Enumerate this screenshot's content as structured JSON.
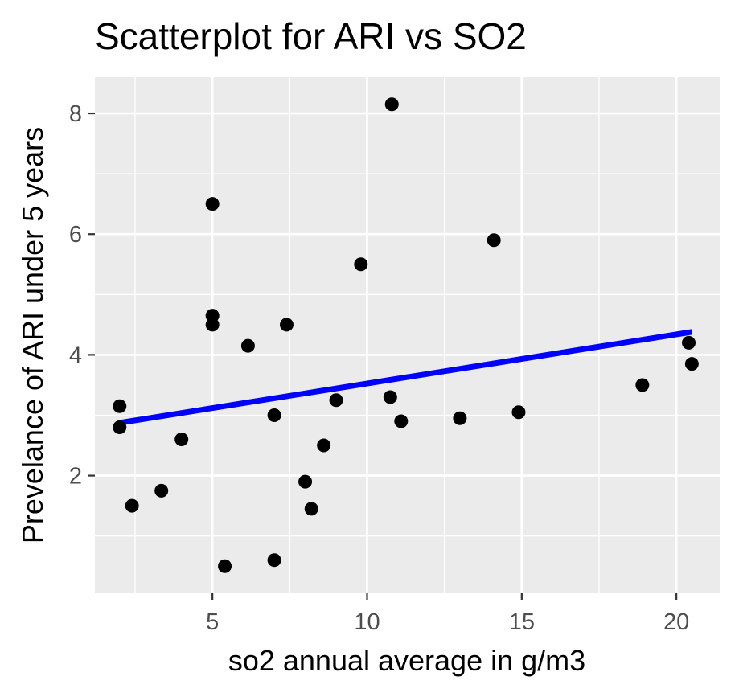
{
  "chart_data": {
    "type": "scatter",
    "title": "Scatterplot for ARI vs SO2",
    "xlabel": "so2 annual average in g/m3",
    "ylabel": "Prevelance of ARI under 5 years",
    "xlim": [
      1.2,
      21.4
    ],
    "ylim": [
      0.05,
      8.6
    ],
    "x_ticks": [
      5,
      10,
      15,
      20
    ],
    "y_ticks": [
      2,
      4,
      6,
      8
    ],
    "x_tick_labels": [
      "5",
      "10",
      "15",
      "20"
    ],
    "y_tick_labels": [
      "2",
      "4",
      "6",
      "8"
    ],
    "grid": true,
    "legend": "none",
    "points": [
      {
        "x": 2.0,
        "y": 3.15
      },
      {
        "x": 2.0,
        "y": 2.8
      },
      {
        "x": 2.4,
        "y": 1.5
      },
      {
        "x": 3.35,
        "y": 1.75
      },
      {
        "x": 4.0,
        "y": 2.6
      },
      {
        "x": 5.0,
        "y": 6.5
      },
      {
        "x": 5.0,
        "y": 4.65
      },
      {
        "x": 5.0,
        "y": 4.5
      },
      {
        "x": 5.4,
        "y": 0.5
      },
      {
        "x": 6.15,
        "y": 4.15
      },
      {
        "x": 7.0,
        "y": 3.0
      },
      {
        "x": 7.0,
        "y": 0.6
      },
      {
        "x": 7.4,
        "y": 4.5
      },
      {
        "x": 8.0,
        "y": 1.9
      },
      {
        "x": 8.2,
        "y": 1.45
      },
      {
        "x": 8.6,
        "y": 2.5
      },
      {
        "x": 9.0,
        "y": 3.25
      },
      {
        "x": 9.8,
        "y": 5.5
      },
      {
        "x": 10.75,
        "y": 3.3
      },
      {
        "x": 10.8,
        "y": 8.15
      },
      {
        "x": 11.1,
        "y": 2.9
      },
      {
        "x": 13.0,
        "y": 2.95
      },
      {
        "x": 14.1,
        "y": 5.9
      },
      {
        "x": 14.9,
        "y": 3.05
      },
      {
        "x": 18.9,
        "y": 3.5
      },
      {
        "x": 20.4,
        "y": 4.2
      },
      {
        "x": 20.5,
        "y": 3.85
      }
    ],
    "trend_line": {
      "x": [
        1.95,
        20.5
      ],
      "y": [
        2.87,
        4.38
      ]
    },
    "colors": {
      "panel_background": "#ebebeb",
      "grid": "#ffffff",
      "points": "#000000",
      "trend_line": "#0000ff",
      "tick_label": "#4d4d4d",
      "tick_mark": "#333333"
    }
  }
}
